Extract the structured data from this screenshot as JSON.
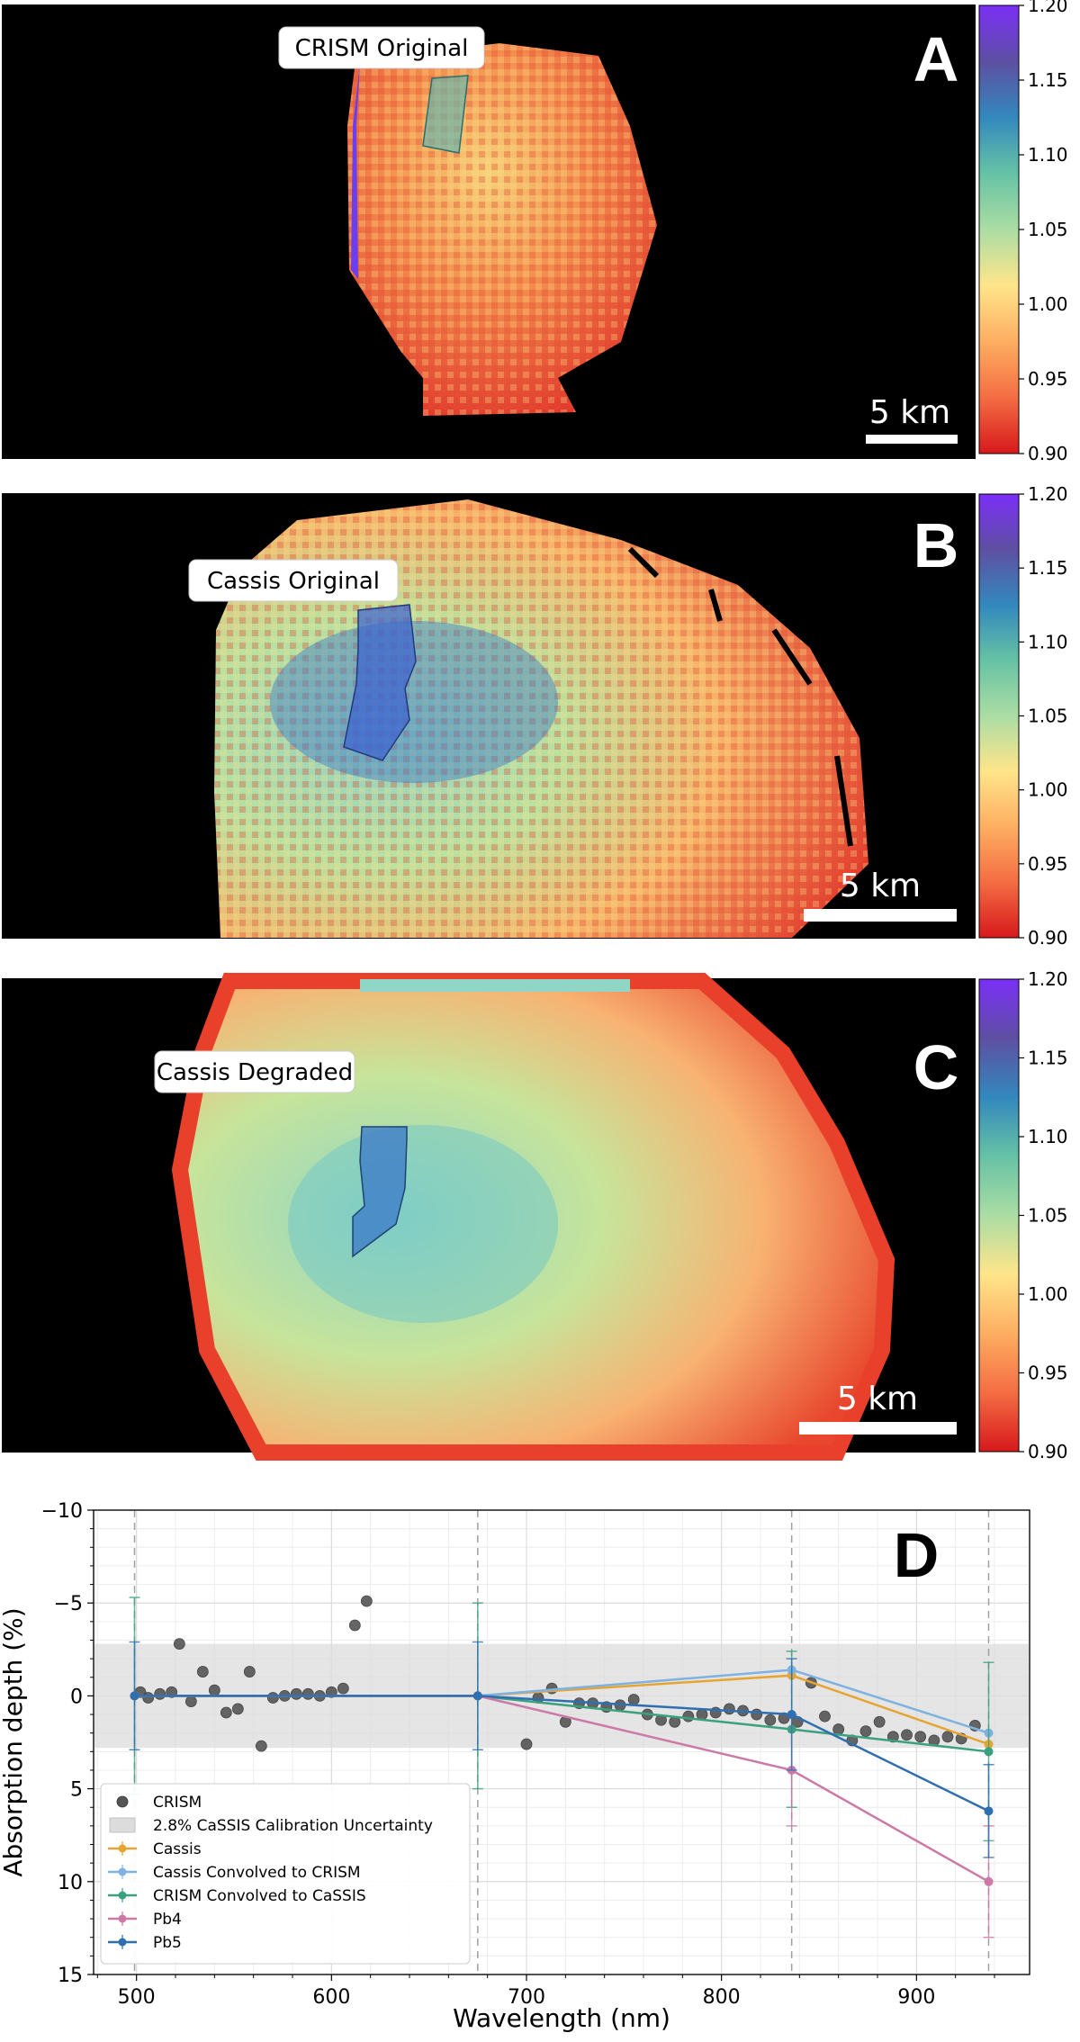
{
  "colormap": [
    "#d7191c",
    "#f46d43",
    "#fdae61",
    "#ffe58a",
    "#abdda4",
    "#66c2a5",
    "#3288bd",
    "#5e4fa2",
    "#7b2ff7"
  ],
  "panels": [
    {
      "letter": "A",
      "label": "CRISM Original",
      "scale_text": "5 km"
    },
    {
      "letter": "B",
      "label": "Cassis Original",
      "scale_text": "5 km"
    },
    {
      "letter": "C",
      "label": "Cassis Degraded",
      "scale_text": "5 km"
    }
  ],
  "colorbar": {
    "ticks": [
      "1.20",
      "1.15",
      "1.10",
      "1.05",
      "1.00",
      "0.95",
      "0.90"
    ]
  },
  "chart_data": {
    "type": "line",
    "panel_letter": "D",
    "xlabel": "Wavelength (nm)",
    "ylabel": "Absorption depth (%)",
    "xlim": [
      478,
      958
    ],
    "ylim": [
      -10,
      15
    ],
    "y_inverted": true,
    "xticks": [
      500,
      600,
      700,
      800,
      900
    ],
    "yticks": [
      -10,
      -5,
      0,
      5,
      10,
      15
    ],
    "ytick_labels": [
      "−10",
      "−5",
      "0",
      "5",
      "10",
      "15"
    ],
    "grid": true,
    "legend_position": "lower-left",
    "dashed_vlines": [
      499,
      675,
      836,
      937
    ],
    "band": {
      "name": "2.8% CaSSIS Calibration Uncertainty",
      "y0": -2.8,
      "y1": 2.8,
      "color": "#dcdcdc"
    },
    "scatter": {
      "name": "CRISM",
      "color": "#555555",
      "x": [
        502,
        506,
        512,
        518,
        522,
        528,
        534,
        540,
        546,
        552,
        558,
        564,
        570,
        576,
        582,
        588,
        594,
        600,
        606,
        612,
        618,
        700,
        706,
        713,
        720,
        727,
        734,
        741,
        748,
        755,
        762,
        769,
        776,
        783,
        790,
        797,
        804,
        811,
        818,
        825,
        832,
        839,
        846,
        853,
        860,
        867,
        874,
        881,
        888,
        895,
        902,
        909,
        916,
        923,
        930
      ],
      "y": [
        -0.2,
        0.1,
        -0.1,
        -0.2,
        -2.8,
        0.3,
        -1.3,
        -0.3,
        0.9,
        0.7,
        -1.3,
        2.7,
        0.1,
        0.0,
        -0.1,
        -0.1,
        0.0,
        -0.2,
        -0.4,
        -3.8,
        -5.1,
        2.6,
        0.1,
        -0.4,
        1.4,
        0.4,
        0.4,
        0.6,
        0.5,
        0.2,
        1.0,
        1.3,
        1.4,
        1.1,
        1.0,
        0.9,
        0.7,
        0.8,
        1.0,
        1.3,
        1.2,
        1.4,
        -0.7,
        1.1,
        1.8,
        2.4,
        1.9,
        1.4,
        2.2,
        2.1,
        2.2,
        2.4,
        2.2,
        2.3,
        1.6
      ]
    },
    "series": [
      {
        "name": "Cassis",
        "color": "#e6a532",
        "x": [
          499,
          675,
          836,
          937
        ],
        "y": [
          0,
          0,
          -1.1,
          2.6
        ],
        "err": [
          0,
          0,
          0,
          0
        ]
      },
      {
        "name": "Cassis Convolved to CRISM",
        "color": "#7fb2e0",
        "x": [
          499,
          675,
          836,
          937
        ],
        "y": [
          0,
          0,
          -1.4,
          2.0
        ],
        "err": [
          0,
          0,
          0,
          0
        ]
      },
      {
        "name": "CRISM Convolved to CaSSIS",
        "color": "#3aa17e",
        "x": [
          499,
          675,
          836,
          937
        ],
        "y": [
          0,
          0,
          1.8,
          3.0
        ],
        "err": [
          5.3,
          5.0,
          4.2,
          4.8
        ]
      },
      {
        "name": "Pb4",
        "color": "#cc79a7",
        "x": [
          499,
          675,
          836,
          937
        ],
        "y": [
          0,
          0,
          4.0,
          10.0
        ],
        "err": [
          0,
          0,
          3.0,
          3.0
        ]
      },
      {
        "name": "Pb5",
        "color": "#2f6fb0",
        "x": [
          499,
          675,
          836,
          937
        ],
        "y": [
          0,
          0,
          1.0,
          6.2
        ],
        "err": [
          2.9,
          2.9,
          3.0,
          2.5
        ]
      }
    ]
  }
}
